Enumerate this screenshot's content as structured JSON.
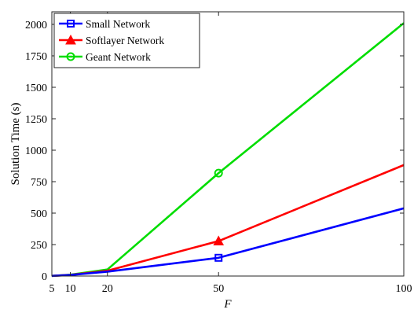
{
  "chart_data": {
    "type": "line",
    "x": [
      5,
      10,
      20,
      50,
      100
    ],
    "xlabel": "F",
    "ylabel": "Solution Time (s)",
    "xlim": [
      5,
      100
    ],
    "ylim": [
      0,
      2100
    ],
    "xticks": [
      5,
      10,
      20,
      50,
      100
    ],
    "yticks": [
      0,
      250,
      500,
      750,
      1000,
      1250,
      1500,
      1750,
      2000
    ],
    "grid": false,
    "legend_position": "top-left",
    "series": [
      {
        "name": "Small Network",
        "values": [
          1,
          8,
          35,
          145,
          538
        ],
        "color": "#0000ff",
        "marker": "square",
        "marker_at": [
          50
        ]
      },
      {
        "name": "Softlayer Network",
        "values": [
          1,
          9,
          42,
          278,
          882
        ],
        "color": "#ff0000",
        "marker": "triangle",
        "marker_at": [
          50
        ]
      },
      {
        "name": "Geant Network",
        "values": [
          1,
          11,
          52,
          818,
          2010
        ],
        "color": "#00dd00",
        "marker": "circle",
        "marker_at": [
          50
        ]
      }
    ]
  }
}
